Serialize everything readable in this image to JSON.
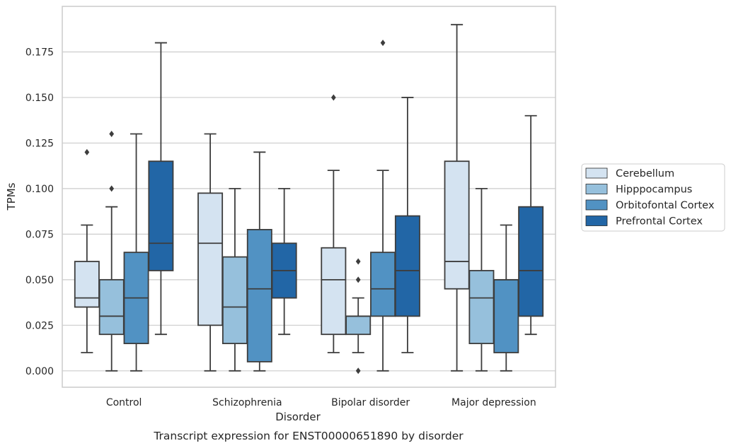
{
  "chart_data": {
    "type": "box",
    "title": "",
    "caption": "Transcript expression for ENST00000651890 by disorder",
    "xlabel": "Disorder",
    "ylabel": "TPMs",
    "ylim": [
      -0.009,
      0.2
    ],
    "yticks": [
      "0.000",
      "0.025",
      "0.050",
      "0.075",
      "0.100",
      "0.125",
      "0.150",
      "0.175"
    ],
    "grid": "horizontal",
    "legend_position": "right",
    "categories": [
      "Control",
      "Schizophrenia",
      "Bipolar disorder",
      "Major depression"
    ],
    "series": [
      {
        "name": "Cerebellum",
        "color": "#d4e3f1",
        "boxes": [
          {
            "min": 0.01,
            "q1": 0.035,
            "median": 0.04,
            "q3": 0.06,
            "max": 0.08,
            "outliers": [
              0.12
            ]
          },
          {
            "min": 0.0,
            "q1": 0.025,
            "median": 0.07,
            "q3": 0.0975,
            "max": 0.13,
            "outliers": []
          },
          {
            "min": 0.01,
            "q1": 0.02,
            "median": 0.05,
            "q3": 0.0675,
            "max": 0.11,
            "outliers": [
              0.15
            ]
          },
          {
            "min": 0.0,
            "q1": 0.045,
            "median": 0.06,
            "q3": 0.115,
            "max": 0.19,
            "outliers": []
          }
        ]
      },
      {
        "name": "Hipppocampus",
        "color": "#96c0dc",
        "boxes": [
          {
            "min": 0.0,
            "q1": 0.02,
            "median": 0.03,
            "q3": 0.05,
            "max": 0.09,
            "outliers": [
              0.1,
              0.13
            ]
          },
          {
            "min": 0.0,
            "q1": 0.015,
            "median": 0.035,
            "q3": 0.0625,
            "max": 0.1,
            "outliers": []
          },
          {
            "min": 0.01,
            "q1": 0.02,
            "median": 0.03,
            "q3": 0.03,
            "max": 0.04,
            "outliers": [
              0.0,
              0.05,
              0.06
            ]
          },
          {
            "min": 0.0,
            "q1": 0.015,
            "median": 0.04,
            "q3": 0.055,
            "max": 0.1,
            "outliers": []
          }
        ]
      },
      {
        "name": "Orbitofontal Cortex",
        "color": "#5192c3",
        "boxes": [
          {
            "min": 0.0,
            "q1": 0.015,
            "median": 0.04,
            "q3": 0.065,
            "max": 0.13,
            "outliers": []
          },
          {
            "min": 0.0,
            "q1": 0.005,
            "median": 0.045,
            "q3": 0.0775,
            "max": 0.12,
            "outliers": []
          },
          {
            "min": 0.0,
            "q1": 0.03,
            "median": 0.045,
            "q3": 0.065,
            "max": 0.11,
            "outliers": [
              0.18
            ]
          },
          {
            "min": 0.0,
            "q1": 0.01,
            "median": 0.05,
            "q3": 0.05,
            "max": 0.08,
            "outliers": []
          }
        ]
      },
      {
        "name": "Prefrontal Cortex",
        "color": "#2266a6",
        "boxes": [
          {
            "min": 0.02,
            "q1": 0.055,
            "median": 0.07,
            "q3": 0.115,
            "max": 0.18,
            "outliers": []
          },
          {
            "min": 0.02,
            "q1": 0.04,
            "median": 0.055,
            "q3": 0.07,
            "max": 0.1,
            "outliers": []
          },
          {
            "min": 0.01,
            "q1": 0.03,
            "median": 0.055,
            "q3": 0.085,
            "max": 0.15,
            "outliers": []
          },
          {
            "min": 0.02,
            "q1": 0.03,
            "median": 0.055,
            "q3": 0.09,
            "max": 0.14,
            "outliers": []
          }
        ]
      }
    ]
  },
  "colors": {
    "line": "#3d3d3d",
    "grid": "#cccccc",
    "frame": "#cccccc"
  }
}
